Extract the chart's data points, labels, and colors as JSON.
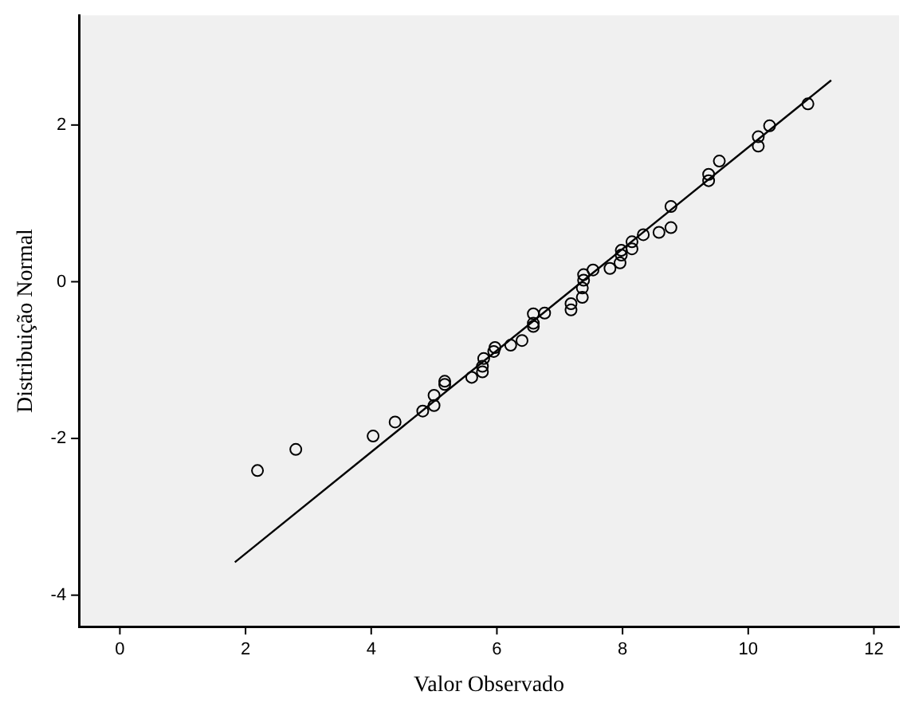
{
  "chart_data": {
    "type": "scatter",
    "xlabel": "Valor Observado",
    "ylabel": "Distribuição Normal",
    "xlim": [
      -0.65,
      12.4
    ],
    "ylim": [
      -4.4,
      3.4
    ],
    "xticks": [
      0,
      2,
      4,
      6,
      8,
      10,
      12
    ],
    "yticks": [
      -4,
      -2,
      0,
      2
    ],
    "grid": false,
    "legend": false,
    "series": [
      {
        "marker": "circle",
        "color": "#000000",
        "x": [
          2.19,
          2.8,
          4.03,
          4.38,
          4.82,
          5.0,
          5.0,
          5.17,
          5.17,
          5.6,
          5.77,
          5.77,
          5.79,
          5.95,
          5.97,
          6.22,
          6.4,
          6.58,
          6.58,
          6.58,
          6.76,
          7.18,
          7.18,
          7.36,
          7.36,
          7.38,
          7.38,
          7.53,
          7.8,
          7.96,
          7.98,
          7.98,
          8.15,
          8.15,
          8.33,
          8.58,
          8.77,
          8.77,
          9.37,
          9.37,
          9.54,
          10.16,
          10.16,
          10.34,
          10.95
        ],
        "values": [
          -2.41,
          -2.14,
          -1.97,
          -1.79,
          -1.65,
          -1.58,
          -1.45,
          -1.31,
          -1.27,
          -1.22,
          -1.15,
          -1.08,
          -0.98,
          -0.89,
          -0.84,
          -0.81,
          -0.75,
          -0.57,
          -0.53,
          -0.41,
          -0.4,
          -0.36,
          -0.28,
          -0.2,
          -0.08,
          0.02,
          0.09,
          0.15,
          0.17,
          0.24,
          0.34,
          0.4,
          0.42,
          0.51,
          0.6,
          0.63,
          0.69,
          0.96,
          1.29,
          1.37,
          1.54,
          1.73,
          1.85,
          1.99,
          2.27
        ]
      },
      {
        "type": "line",
        "marker": "none",
        "line_style": "solid",
        "color": "#000000",
        "x": [
          1.83,
          11.32
        ],
        "values": [
          -3.58,
          2.57
        ]
      }
    ]
  }
}
